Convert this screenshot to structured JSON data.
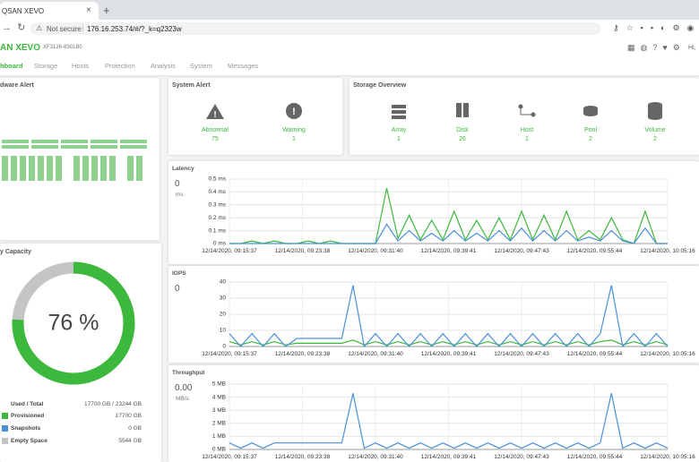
{
  "browser": {
    "tab_title": "QSAN XEVO",
    "security": "Not secure",
    "url": "176.16.253.74/#/?_k=q2323w"
  },
  "header": {
    "logo": "AN XEVO",
    "model": "XF3126-8301B0",
    "greeting": "Hi,"
  },
  "nav": [
    "hboard",
    "Storage",
    "Hosts",
    "Protection",
    "Analysis",
    "System",
    "Messages"
  ],
  "hardware_alert": {
    "title": "dware Alert"
  },
  "system_alert": {
    "title": "System Alert",
    "items": [
      {
        "label": "Abnormal",
        "count": "75"
      },
      {
        "label": "Warning",
        "count": "1"
      }
    ]
  },
  "storage_overview": {
    "title": "Storage Overview",
    "items": [
      {
        "label": "Array",
        "count": "1"
      },
      {
        "label": "Disk",
        "count": "26"
      },
      {
        "label": "Host",
        "count": "1"
      },
      {
        "label": "Pool",
        "count": "2"
      },
      {
        "label": "Volume",
        "count": "2"
      }
    ]
  },
  "capacity": {
    "title": "y Capacity",
    "usage": {
      "value": 76,
      "label": "76 %"
    },
    "used_color": "#3cb93c",
    "free_color": "#c4c4c4",
    "used_total_label": "Used / Total",
    "used_total": "17700 GB / 23244 GB",
    "items": [
      {
        "label": "Provisioned",
        "value": "17700 GB",
        "color": "#3cb93c"
      },
      {
        "label": "Snapshots",
        "value": "0 GB",
        "color": "#4a90d9"
      },
      {
        "label": "Empty Space",
        "value": "5544 GB",
        "color": "#c4c4c4"
      }
    ]
  },
  "charts": [
    {
      "type": "line",
      "title": "Latency",
      "current": "0",
      "unit": "ms",
      "ylim": [
        0,
        0.5
      ],
      "yticks": [
        {
          "value": 0,
          "label": "0 ms"
        },
        {
          "value": 0.1,
          "label": "0.1 ms"
        },
        {
          "value": 0.2,
          "label": "0.2 ms"
        },
        {
          "value": 0.3,
          "label": "0.3 ms"
        },
        {
          "value": 0.4,
          "label": "0.4 ms"
        },
        {
          "value": 0.5,
          "label": "0.5 ms"
        }
      ],
      "xticks": [
        "12/14/2020, 09:15:37",
        "12/14/2020, 09:23:38",
        "12/14/2020, 09:31:40",
        "12/14/2020, 09:39:41",
        "12/14/2020, 09:47:43",
        "12/14/2020, 09:55:44",
        "12/14/2020, 10:05:16"
      ],
      "series": [
        {
          "color": "#3cb93c",
          "values": [
            0,
            0,
            0.02,
            0,
            0.02,
            0,
            0,
            0.02,
            0,
            0.02,
            0,
            0,
            0,
            0,
            0.43,
            0.04,
            0.22,
            0.03,
            0.18,
            0.03,
            0.25,
            0.03,
            0.18,
            0.03,
            0.2,
            0.03,
            0.25,
            0.03,
            0.22,
            0.03,
            0.25,
            0.03,
            0.1,
            0.03,
            0.2,
            0.03,
            0,
            0.25,
            0,
            0
          ]
        },
        {
          "color": "#4a90d9",
          "values": [
            0,
            0,
            0,
            0,
            0,
            0,
            0,
            0,
            0,
            0,
            0,
            0,
            0,
            0,
            0.15,
            0.02,
            0.1,
            0.02,
            0.08,
            0.02,
            0.1,
            0.02,
            0.08,
            0.02,
            0.1,
            0.02,
            0.12,
            0.02,
            0.1,
            0.02,
            0.1,
            0.02,
            0.05,
            0.02,
            0.1,
            0.02,
            0,
            0.12,
            0,
            0
          ]
        }
      ]
    },
    {
      "type": "line",
      "title": "IOPS",
      "current": "0",
      "ylim": [
        0,
        40
      ],
      "yticks": [
        0,
        10,
        20,
        30,
        40
      ],
      "xticks": [
        "12/14/2020, 09:15:37",
        "12/14/2020, 09:23:38",
        "12/14/2020, 09:31:40",
        "12/14/2020, 09:39:41",
        "12/14/2020, 09:47:43",
        "12/14/2020, 09:55:44",
        "12/14/2020, 10:05:16"
      ],
      "series": [
        {
          "color": "#3cb93c",
          "values": [
            3,
            1,
            3,
            1,
            3,
            1,
            2,
            2,
            2,
            2,
            2,
            4,
            1,
            3,
            1,
            3,
            1,
            3,
            1,
            3,
            1,
            3,
            1,
            3,
            1,
            3,
            1,
            3,
            1,
            3,
            1,
            3,
            1,
            3,
            4,
            1,
            3,
            1,
            3,
            1
          ]
        },
        {
          "color": "#4a90d9",
          "values": [
            8,
            0,
            8,
            0,
            8,
            0,
            5,
            5,
            5,
            5,
            5,
            38,
            0,
            8,
            0,
            8,
            0,
            8,
            0,
            8,
            0,
            8,
            0,
            8,
            0,
            8,
            0,
            8,
            0,
            8,
            0,
            8,
            0,
            8,
            38,
            0,
            8,
            0,
            8,
            0
          ]
        }
      ]
    },
    {
      "type": "line",
      "title": "Throughput",
      "current": "0.00",
      "unit": "MB/s",
      "ylim": [
        0,
        5
      ],
      "yticks": [
        {
          "value": 0,
          "label": "0 MB"
        },
        {
          "value": 1,
          "label": "1 MB"
        },
        {
          "value": 2,
          "label": "2 MB"
        },
        {
          "value": 3,
          "label": "3 MB"
        },
        {
          "value": 4,
          "label": "4 MB"
        },
        {
          "value": 5,
          "label": "5 MB"
        }
      ],
      "xticks": [
        "12/14/2020, 09:15:37",
        "12/14/2020, 09:23:38",
        "12/14/2020, 09:31:40",
        "12/14/2020, 09:39:41",
        "12/14/2020, 09:47:43",
        "12/14/2020, 09:55:44",
        "12/14/2020, 10:05:16"
      ],
      "series": [
        {
          "color": "#4a90d9",
          "values": [
            0.5,
            0.1,
            0.5,
            0.1,
            0.5,
            0.5,
            0.5,
            0.5,
            0.5,
            0.5,
            0.5,
            4.3,
            0.1,
            0.5,
            0.1,
            0.5,
            0.1,
            0.5,
            0.1,
            0.5,
            0.1,
            0.5,
            0.1,
            0.5,
            0.1,
            0.5,
            0.1,
            0.5,
            0.1,
            0.5,
            0.1,
            0.5,
            0.1,
            0.5,
            4.3,
            0.1,
            0.5,
            0.1,
            0.5,
            0.1
          ]
        }
      ]
    }
  ]
}
